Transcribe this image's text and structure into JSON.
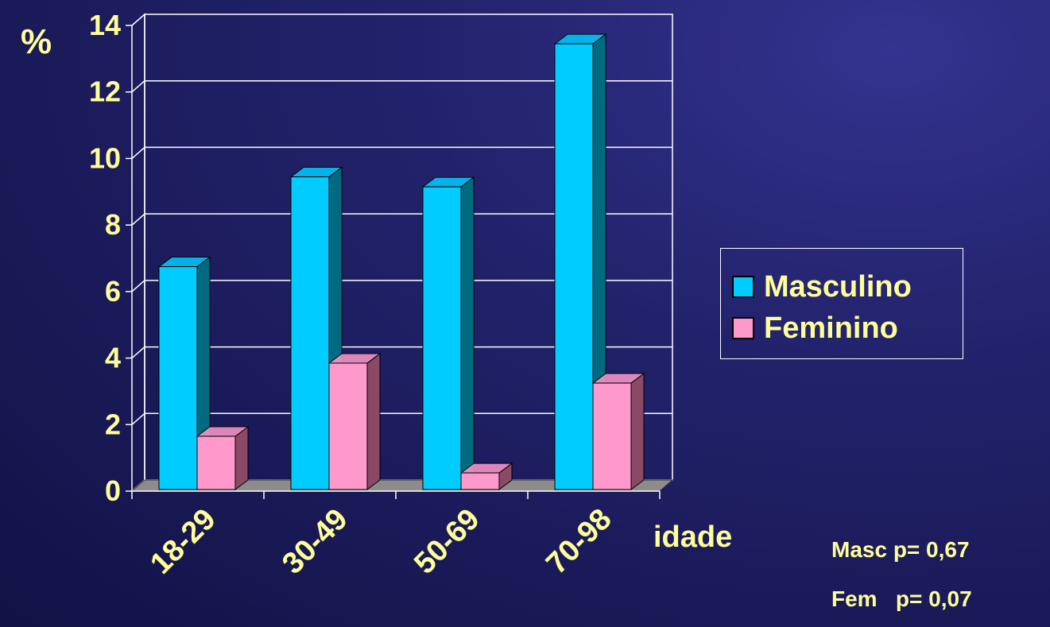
{
  "chart_data": {
    "type": "bar",
    "categories": [
      "18-29",
      "30-49",
      "50-69",
      "70-98"
    ],
    "series": [
      {
        "name": "Masculino",
        "values": [
          6.7,
          9.4,
          9.1,
          13.4
        ],
        "color": "#00ccff",
        "side": "#006b80"
      },
      {
        "name": "Feminino",
        "values": [
          1.6,
          3.8,
          0.5,
          3.2
        ],
        "color": "#ff99cc",
        "side": "#8a4a66"
      }
    ],
    "ylim": [
      0,
      14
    ],
    "yticks": [
      "0",
      "2",
      "4",
      "6",
      "8",
      "10",
      "12",
      "14"
    ],
    "ylabel": "%",
    "xlabel": "idade",
    "grid": true,
    "legend_position": "right"
  },
  "stats": {
    "masc": "Masc p= 0,67",
    "fem": "Fem   p= 0,07"
  }
}
